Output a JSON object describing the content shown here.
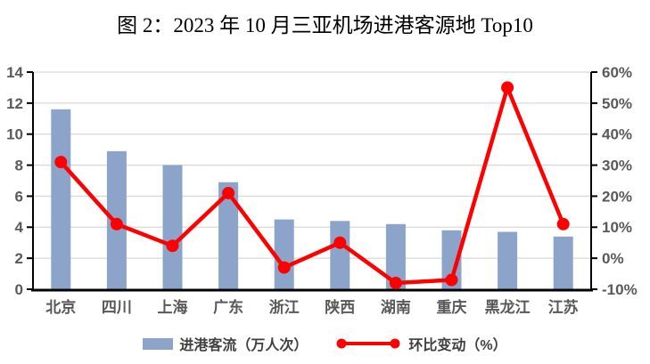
{
  "title": "图 2：2023 年 10 月三亚机场进港客源地 Top10",
  "legend": {
    "bar_label": "进港客流（万人次）",
    "line_label": "环比变动（%）"
  },
  "colors": {
    "bar": "#8CA4CA",
    "line": "#FE0000",
    "grid": "#D9D9D9",
    "axis": "#000000",
    "tick_label": "#595959",
    "legend_text": "#404040",
    "background": "#FFFFFF"
  },
  "chart_data": {
    "type": "bar",
    "subtype": "combo-bar-line",
    "title": "图 2：2023 年 10 月三亚机场进港客源地 Top10",
    "categories": [
      "北京",
      "四川",
      "上海",
      "广东",
      "浙江",
      "陕西",
      "湖南",
      "重庆",
      "黑龙江",
      "江苏"
    ],
    "series": [
      {
        "name": "进港客流（万人次）",
        "type": "bar",
        "axis": "left",
        "color": "#8CA4CA",
        "values": [
          11.6,
          8.9,
          8.0,
          6.9,
          4.5,
          4.4,
          4.2,
          3.8,
          3.7,
          3.4
        ]
      },
      {
        "name": "环比变动（%）",
        "type": "line",
        "axis": "right",
        "color": "#FE0000",
        "values": [
          31,
          11,
          4,
          21,
          -3,
          5,
          -8,
          -7,
          55,
          11
        ]
      }
    ],
    "left_axis": {
      "min": 0,
      "max": 14,
      "step": 2,
      "labels": [
        "0",
        "2",
        "4",
        "6",
        "8",
        "10",
        "12",
        "14"
      ]
    },
    "right_axis": {
      "min": -10,
      "max": 60,
      "step": 10,
      "labels": [
        "-10%",
        "0%",
        "10%",
        "20%",
        "30%",
        "40%",
        "50%",
        "60%"
      ]
    },
    "grid": true,
    "legend_position": "bottom"
  }
}
